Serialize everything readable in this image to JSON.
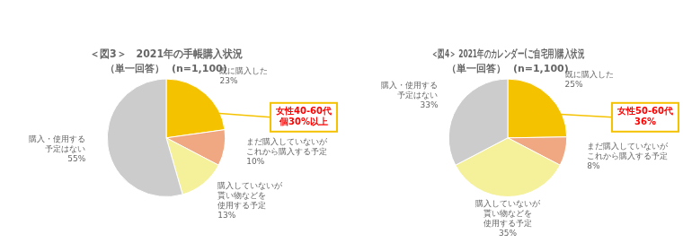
{
  "chart_data": [
    {
      "type": "pie",
      "title": "＜図3＞　2021年の手帳購入状況",
      "subtitle": "（単一回答）  (n=1,100)",
      "categories": [
        "既に購入した",
        "まだ購入していないが\nこれから購入する予定",
        "購入していないが\n貰い物などを\n使用する予定",
        "購入・使用する\n予定はない"
      ],
      "values": [
        23,
        10,
        13,
        55
      ],
      "value_labels": [
        "23%",
        "10%",
        "13%",
        "55%"
      ],
      "colors": [
        "#F5C200",
        "#F0A882",
        "#F5F09A",
        "#CCCCCC"
      ],
      "data_labels": true,
      "annotations": [
        {
          "text": "女性40-60代\n個30%以上",
          "color": "#FF0000"
        }
      ]
    },
    {
      "type": "pie",
      "title": "＜図4＞ 2021年のカレンダー(ご自宅用)購入状況",
      "subtitle": "（単一回答）  (n=1,100)",
      "categories": [
        "既に購入した",
        "まだ購入していないが\nこれから購入する予定",
        "購入していないが\n貰い物などを\n使用する予定",
        "購入・使用する\n予定はない"
      ],
      "values": [
        25,
        8,
        35,
        33
      ],
      "value_labels": [
        "25%",
        "8%",
        "35%",
        "33%"
      ],
      "colors": [
        "#F5C200",
        "#F0A882",
        "#F5F09A",
        "#CCCCCC"
      ],
      "data_labels": true,
      "annotations": [
        {
          "text": "女性50-60代\n36%",
          "color": "#FF0000"
        }
      ]
    }
  ]
}
